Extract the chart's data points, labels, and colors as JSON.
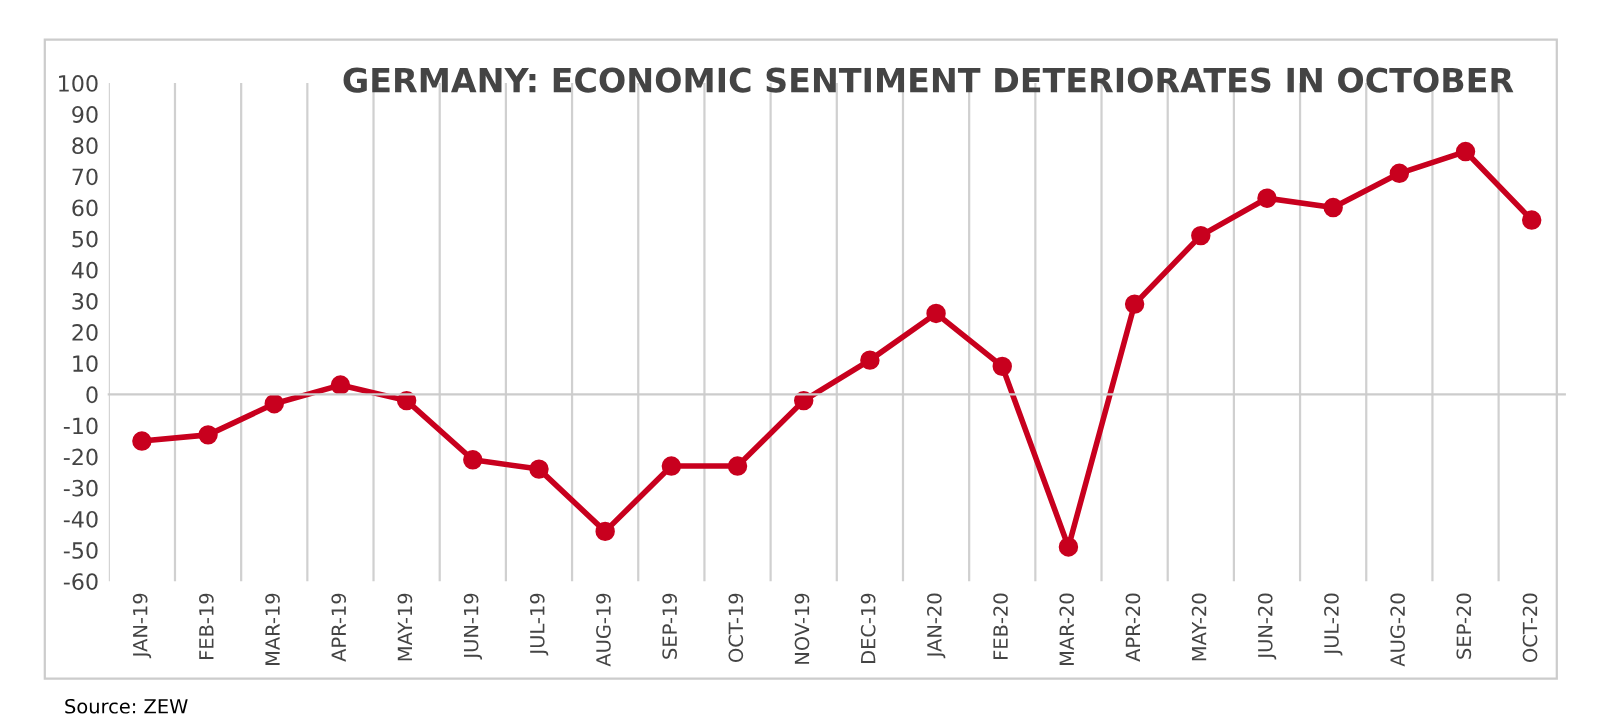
{
  "chart_data": {
    "type": "line",
    "title": "GERMANY: ECONOMIC SENTIMENT DETERIORATES IN OCTOBER",
    "categories": [
      "JAN-19",
      "FEB-19",
      "MAR-19",
      "APR-19",
      "MAY-19",
      "JUN-19",
      "JUL-19",
      "AUG-19",
      "SEP-19",
      "OCT-19",
      "NOV-19",
      "DEC-19",
      "JAN-20",
      "FEB-20",
      "MAR-20",
      "APR-20",
      "MAY-20",
      "JUN-20",
      "JUL-20",
      "AUG-20",
      "SEP-20",
      "OCT-20"
    ],
    "series": [
      {
        "color": "#c8001e",
        "values": [
          -15,
          -13,
          -3,
          3,
          -2,
          -21,
          -24,
          -44,
          -23,
          -23,
          -2,
          11,
          26,
          9,
          -49,
          29,
          51,
          63,
          60,
          71,
          78,
          56
        ]
      }
    ],
    "ylim": [
      -60,
      100
    ],
    "yticks": [
      -60,
      -50,
      -40,
      -30,
      -20,
      -10,
      0,
      10,
      20,
      30,
      40,
      50,
      60,
      70,
      80,
      90,
      100
    ],
    "grid": "x",
    "marker": "circle",
    "line_style": "solid",
    "annotations": [
      "Source: ZEW"
    ]
  }
}
